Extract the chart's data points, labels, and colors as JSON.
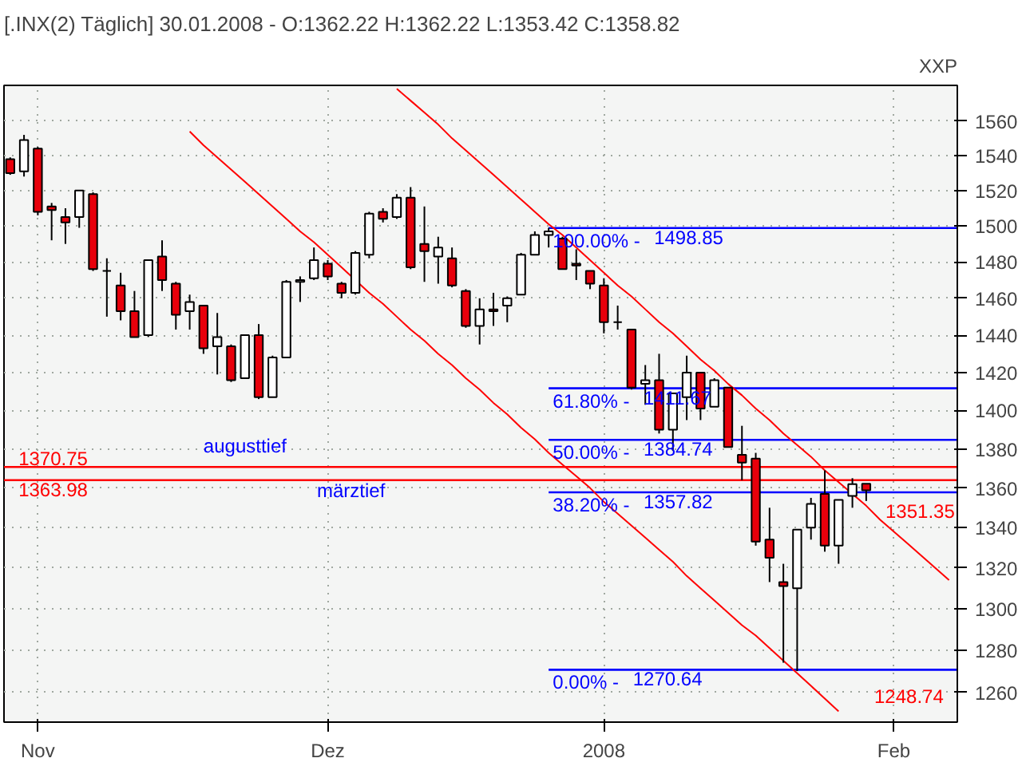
{
  "chart_data": {
    "type": "candlestick",
    "title": "[.INX(2)  Täglich] 30.01.2008 - O:1362.22 H:1362.22 L:1353.42 C:1358.82",
    "categories": [
      null,
      null,
      "Nov",
      null,
      null,
      null,
      null,
      null,
      null,
      null,
      null,
      null,
      null,
      null,
      null,
      null,
      null,
      null,
      null,
      null,
      null,
      null,
      null,
      "Dez",
      null,
      null,
      null,
      null,
      null,
      null,
      null,
      null,
      null,
      null,
      null,
      null,
      null,
      null,
      null,
      null,
      null,
      null,
      null,
      "2008",
      null,
      null,
      null,
      null,
      null,
      null,
      null,
      null,
      null,
      null,
      null,
      null,
      null,
      null,
      null,
      null,
      null,
      null,
      null,
      null,
      "Feb",
      null,
      null,
      null,
      null
    ],
    "ohlc": [
      [
        1538,
        1539,
        1529,
        1530
      ],
      [
        1531,
        1552,
        1528,
        1549
      ],
      [
        1544,
        1545,
        1506,
        1508
      ],
      [
        1511,
        1513,
        1492,
        1509
      ],
      [
        1505,
        1510,
        1490,
        1502
      ],
      [
        1505,
        1520,
        1499,
        1520
      ],
      [
        1518,
        1519,
        1475,
        1476
      ],
      [
        1475,
        1482,
        1450,
        1475
      ],
      [
        1467,
        1474,
        1448,
        1453
      ],
      [
        1453,
        1464,
        1439,
        1439
      ],
      [
        1440,
        1481,
        1439,
        1481
      ],
      [
        1483,
        1492,
        1464,
        1470
      ],
      [
        1468,
        1469,
        1443,
        1451
      ],
      [
        1453,
        1462,
        1443,
        1458
      ],
      [
        1456,
        1456,
        1430,
        1433
      ],
      [
        1434,
        1452,
        1419,
        1439
      ],
      [
        1434,
        1435,
        1415,
        1416
      ],
      [
        1417,
        1440,
        1417,
        1440
      ],
      [
        1440,
        1446,
        1406,
        1407
      ],
      [
        1407,
        1429,
        1407,
        1428
      ],
      [
        1428,
        1470,
        1428,
        1469
      ],
      [
        1469,
        1472,
        1458,
        1470
      ],
      [
        1471,
        1488,
        1470,
        1481
      ],
      [
        1479,
        1481,
        1470,
        1472
      ],
      [
        1468,
        1469,
        1460,
        1463
      ],
      [
        1463,
        1486,
        1462,
        1485
      ],
      [
        1484,
        1508,
        1482,
        1507
      ],
      [
        1508,
        1510,
        1502,
        1504
      ],
      [
        1505,
        1518,
        1504,
        1516
      ],
      [
        1516,
        1522,
        1476,
        1477
      ],
      [
        1490,
        1511,
        1469,
        1486
      ],
      [
        1483,
        1494,
        1468,
        1488
      ],
      [
        1482,
        1488,
        1466,
        1467
      ],
      [
        1464,
        1465,
        1444,
        1445
      ],
      [
        1445,
        1460,
        1435,
        1454
      ],
      [
        1454,
        1463,
        1445,
        1453
      ],
      [
        1456,
        1461,
        1447,
        1460
      ],
      [
        1462,
        1485,
        1462,
        1484
      ],
      [
        1484,
        1497,
        1484,
        1495
      ],
      [
        1495,
        1499,
        1488,
        1497
      ],
      [
        1493,
        1494,
        1476,
        1476
      ],
      [
        1479,
        1487,
        1470,
        1478
      ],
      [
        1475,
        1475,
        1465,
        1468
      ],
      [
        1467,
        1471,
        1441,
        1447
      ],
      [
        1447,
        1456,
        1443,
        1447
      ],
      [
        1443,
        1443,
        1411,
        1412
      ],
      [
        1414,
        1424,
        1403,
        1416
      ],
      [
        1416,
        1430,
        1388,
        1390
      ],
      [
        1390,
        1409,
        1379,
        1409
      ],
      [
        1407,
        1429,
        1395,
        1420
      ],
      [
        1420,
        1420,
        1395,
        1401
      ],
      [
        1402,
        1417,
        1402,
        1416
      ],
      [
        1412,
        1412,
        1381,
        1381
      ],
      [
        1377,
        1392,
        1364,
        1373
      ],
      [
        1375,
        1378,
        1331,
        1333
      ],
      [
        1334,
        1350,
        1313,
        1325
      ],
      [
        1313,
        1322,
        1274,
        1311
      ],
      [
        1310,
        1339,
        1270,
        1339
      ],
      [
        1340,
        1355,
        1334,
        1352
      ],
      [
        1357,
        1369,
        1328,
        1331
      ],
      [
        1331,
        1354,
        1322,
        1354
      ],
      [
        1356,
        1365,
        1350,
        1362
      ],
      [
        1362.22,
        1362.22,
        1353.42,
        1358.82
      ],
      null,
      null,
      null,
      null,
      null,
      null
    ],
    "series": [
      {
        "type": "line",
        "color": "#ff0000",
        "values": [
          null,
          null,
          null,
          null,
          null,
          null,
          null,
          null,
          null,
          null,
          null,
          null,
          null,
          null,
          null,
          null,
          null,
          null,
          null,
          null,
          null,
          null,
          null,
          null,
          null,
          null,
          null,
          null,
          1579,
          1572,
          1565,
          1558,
          1550,
          1543,
          1536,
          1529,
          1522,
          1515,
          1508,
          1501,
          1495,
          1488,
          1481,
          1474,
          1467,
          1461,
          1454,
          1447,
          1441,
          1434,
          1427,
          1421,
          1414,
          1408,
          1401,
          1395,
          1388,
          1382,
          1376,
          1369,
          1363,
          1357,
          1351,
          1344,
          1338,
          1332,
          1326,
          1320,
          1314
        ]
      },
      {
        "type": "line",
        "color": "#ff0000",
        "values": [
          null,
          null,
          null,
          null,
          null,
          null,
          null,
          null,
          null,
          null,
          null,
          null,
          null,
          1554,
          1546,
          1539,
          1532,
          1525,
          1518,
          1511,
          1504,
          1497,
          1491,
          1484,
          1477,
          1470,
          1463,
          1457,
          1450,
          1443,
          1437,
          1430,
          1424,
          1417,
          1411,
          1404,
          1398,
          1391,
          1385,
          1378,
          1372,
          1366,
          1360,
          1353,
          1347,
          1341,
          1335,
          1329,
          1323,
          1316,
          1310,
          1304,
          1298,
          1292,
          1287,
          1281,
          1275,
          1269,
          1263,
          1257,
          1251,
          null,
          null,
          null,
          null,
          null,
          null,
          null,
          null
        ]
      }
    ],
    "ylim": [
      1246,
      1581
    ],
    "log": true,
    "yticks": [
      1260,
      1280,
      1300,
      1320,
      1340,
      1360,
      1380,
      1400,
      1420,
      1440,
      1460,
      1480,
      1500,
      1520,
      1540,
      1560
    ],
    "grid": true,
    "ref_lines": [
      {
        "axis": "y",
        "value": 1370.75,
        "label": "1370.75",
        "color": "#ff0000"
      },
      {
        "axis": "y",
        "value": 1363.98,
        "label": "1363.98",
        "color": "#ff0000"
      },
      {
        "axis": "y",
        "value": 1498.85,
        "label": "1498.85",
        "color": "#0000ff"
      },
      {
        "axis": "y",
        "value": 1411.67,
        "label": "1411.67",
        "color": "#0000ff"
      },
      {
        "axis": "y",
        "value": 1384.74,
        "label": "1384.74",
        "color": "#0000ff"
      },
      {
        "axis": "y",
        "value": 1357.82,
        "label": "1357.82",
        "color": "#0000ff"
      },
      {
        "axis": "y",
        "value": 1270.64,
        "label": "1270.64",
        "color": "#0000ff"
      }
    ],
    "annotations": [
      {
        "text": "augusttief",
        "y": 1370.75
      },
      "märztief",
      "1351.35",
      "1248.74",
      "XXP",
      "100.00% -",
      "61.80% -",
      "50.00% -",
      "38.20% -",
      "0.00% -"
    ]
  }
}
